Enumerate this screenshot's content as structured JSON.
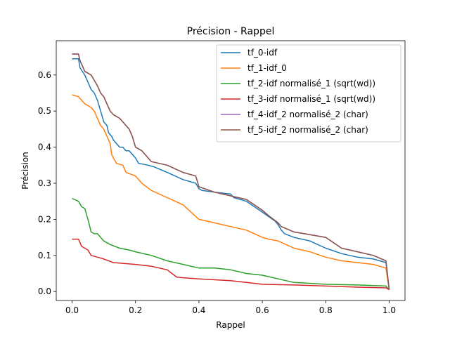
{
  "chart_data": {
    "type": "line",
    "title": "Précision - Rappel",
    "xlabel": "Rappel",
    "ylabel": "Précision",
    "xlim": [
      -0.05,
      1.05
    ],
    "ylim": [
      -0.025,
      0.695
    ],
    "xticks": [
      "0.0",
      "0.2",
      "0.4",
      "0.6",
      "0.8",
      "1.0"
    ],
    "xtick_values": [
      0.0,
      0.2,
      0.4,
      0.6,
      0.8,
      1.0
    ],
    "yticks": [
      "0.0",
      "0.1",
      "0.2",
      "0.3",
      "0.4",
      "0.5",
      "0.6"
    ],
    "ytick_values": [
      0.0,
      0.1,
      0.2,
      0.3,
      0.4,
      0.5,
      0.6
    ],
    "grid": false,
    "legend_position": "top-right",
    "series": [
      {
        "name": "tf_0-idf",
        "color": "#1f77b4",
        "x": [
          0.0,
          0.02,
          0.025,
          0.04,
          0.05,
          0.06,
          0.07,
          0.08,
          0.09,
          0.1,
          0.11,
          0.115,
          0.125,
          0.13,
          0.14,
          0.15,
          0.16,
          0.17,
          0.18,
          0.2,
          0.21,
          0.24,
          0.26,
          0.3,
          0.35,
          0.39,
          0.4,
          0.41,
          0.45,
          0.5,
          0.51,
          0.55,
          0.6,
          0.64,
          0.65,
          0.66,
          0.67,
          0.7,
          0.75,
          0.8,
          0.85,
          0.9,
          0.95,
          0.99,
          1.0
        ],
        "y": [
          0.645,
          0.645,
          0.62,
          0.6,
          0.58,
          0.56,
          0.55,
          0.53,
          0.5,
          0.47,
          0.46,
          0.44,
          0.43,
          0.42,
          0.41,
          0.4,
          0.4,
          0.39,
          0.39,
          0.37,
          0.355,
          0.35,
          0.345,
          0.33,
          0.31,
          0.3,
          0.285,
          0.28,
          0.275,
          0.27,
          0.26,
          0.25,
          0.22,
          0.195,
          0.185,
          0.17,
          0.16,
          0.15,
          0.14,
          0.12,
          0.105,
          0.095,
          0.09,
          0.08,
          0.005
        ]
      },
      {
        "name": "tf_1-idf_0",
        "color": "#ff7f0e",
        "x": [
          0.0,
          0.02,
          0.04,
          0.06,
          0.07,
          0.08,
          0.09,
          0.1,
          0.11,
          0.12,
          0.125,
          0.13,
          0.14,
          0.16,
          0.17,
          0.2,
          0.22,
          0.25,
          0.3,
          0.35,
          0.4,
          0.45,
          0.5,
          0.55,
          0.6,
          0.62,
          0.65,
          0.7,
          0.75,
          0.8,
          0.85,
          0.9,
          0.95,
          0.99,
          1.0
        ],
        "y": [
          0.545,
          0.54,
          0.52,
          0.51,
          0.5,
          0.48,
          0.46,
          0.45,
          0.43,
          0.41,
          0.38,
          0.37,
          0.355,
          0.35,
          0.33,
          0.32,
          0.3,
          0.28,
          0.26,
          0.24,
          0.2,
          0.19,
          0.18,
          0.17,
          0.15,
          0.145,
          0.14,
          0.12,
          0.11,
          0.095,
          0.085,
          0.08,
          0.075,
          0.065,
          0.005
        ]
      },
      {
        "name": "tf_2-idf normalisé_1 (sqrt(wd))",
        "color": "#2ca02c",
        "x": [
          0.0,
          0.02,
          0.03,
          0.04,
          0.05,
          0.06,
          0.07,
          0.08,
          0.1,
          0.12,
          0.15,
          0.18,
          0.2,
          0.25,
          0.3,
          0.35,
          0.4,
          0.45,
          0.5,
          0.55,
          0.6,
          0.65,
          0.7,
          0.8,
          0.9,
          0.99,
          1.0
        ],
        "y": [
          0.258,
          0.25,
          0.235,
          0.23,
          0.2,
          0.165,
          0.16,
          0.16,
          0.14,
          0.13,
          0.12,
          0.115,
          0.11,
          0.1,
          0.085,
          0.075,
          0.065,
          0.065,
          0.06,
          0.05,
          0.045,
          0.035,
          0.025,
          0.02,
          0.018,
          0.015,
          0.005
        ]
      },
      {
        "name": "tf_3-idf normalisé_1 (sqrt(wd))",
        "color": "#d62728",
        "x": [
          0.0,
          0.02,
          0.03,
          0.05,
          0.06,
          0.08,
          0.1,
          0.13,
          0.2,
          0.25,
          0.3,
          0.33,
          0.35,
          0.4,
          0.5,
          0.55,
          0.6,
          0.7,
          0.8,
          0.9,
          0.99,
          1.0
        ],
        "y": [
          0.145,
          0.145,
          0.125,
          0.115,
          0.1,
          0.095,
          0.09,
          0.08,
          0.075,
          0.07,
          0.06,
          0.04,
          0.038,
          0.035,
          0.03,
          0.025,
          0.02,
          0.018,
          0.015,
          0.012,
          0.01,
          0.005
        ]
      },
      {
        "name": "tf_4-idf_2 normalisé_2 (char)",
        "color": "#9467bd",
        "x": [
          0.0,
          0.02,
          0.025,
          0.04,
          0.06,
          0.08,
          0.09,
          0.1,
          0.11,
          0.12,
          0.13,
          0.15,
          0.18,
          0.19,
          0.2,
          0.22,
          0.25,
          0.3,
          0.35,
          0.39,
          0.4,
          0.45,
          0.5,
          0.55,
          0.6,
          0.62,
          0.65,
          0.66,
          0.7,
          0.8,
          0.85,
          0.9,
          0.95,
          0.99,
          1.0
        ],
        "y": [
          0.658,
          0.658,
          0.64,
          0.61,
          0.6,
          0.57,
          0.55,
          0.54,
          0.52,
          0.5,
          0.49,
          0.48,
          0.45,
          0.43,
          0.4,
          0.39,
          0.36,
          0.35,
          0.33,
          0.32,
          0.29,
          0.275,
          0.265,
          0.255,
          0.225,
          0.21,
          0.19,
          0.18,
          0.165,
          0.15,
          0.12,
          0.11,
          0.1,
          0.085,
          0.005
        ]
      },
      {
        "name": "tf_5-idf_2 normalisé_2 (char)",
        "color": "#8c564b",
        "x": [
          0.0,
          0.02,
          0.025,
          0.04,
          0.06,
          0.08,
          0.09,
          0.1,
          0.11,
          0.12,
          0.13,
          0.15,
          0.18,
          0.19,
          0.2,
          0.22,
          0.25,
          0.3,
          0.35,
          0.39,
          0.4,
          0.45,
          0.5,
          0.55,
          0.6,
          0.62,
          0.65,
          0.66,
          0.7,
          0.8,
          0.85,
          0.9,
          0.95,
          0.99,
          1.0
        ],
        "y": [
          0.658,
          0.658,
          0.64,
          0.61,
          0.6,
          0.57,
          0.55,
          0.54,
          0.52,
          0.5,
          0.49,
          0.48,
          0.45,
          0.43,
          0.4,
          0.39,
          0.36,
          0.35,
          0.33,
          0.32,
          0.29,
          0.275,
          0.265,
          0.255,
          0.225,
          0.21,
          0.19,
          0.18,
          0.165,
          0.15,
          0.12,
          0.11,
          0.1,
          0.085,
          0.005
        ]
      }
    ]
  }
}
